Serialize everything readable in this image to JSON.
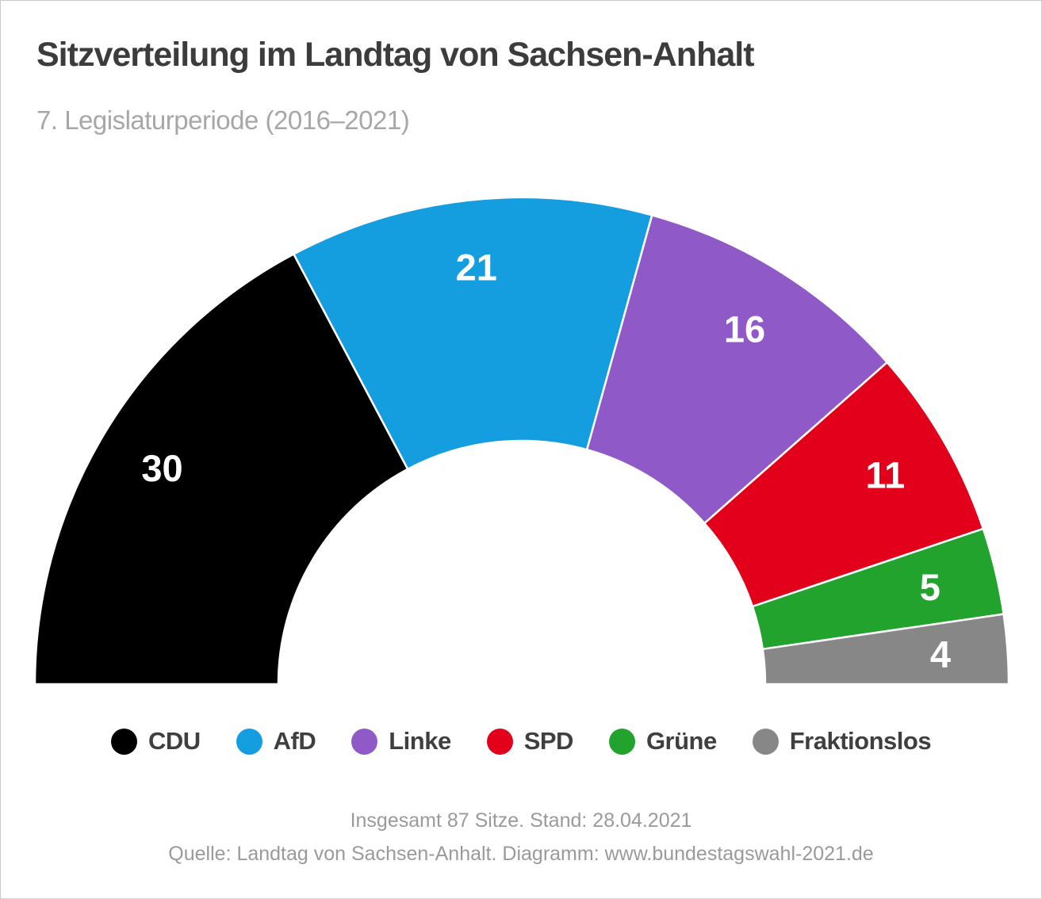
{
  "header": {
    "title": "Sitzverteilung im Landtag von Sachsen-Anhalt",
    "subtitle": "7. Legislaturperiode (2016–2021)"
  },
  "chart_data": {
    "type": "pie",
    "subtype": "hemicycle-half-donut",
    "title": "Sitzverteilung im Landtag von Sachsen-Anhalt",
    "subtitle": "7. Legislaturperiode (2016–2021)",
    "total_seats": 87,
    "categories": [
      "CDU",
      "AfD",
      "Linke",
      "SPD",
      "Grüne",
      "Fraktionslos"
    ],
    "values": [
      30,
      21,
      16,
      11,
      5,
      4
    ],
    "series": [
      {
        "name": "CDU",
        "slug": "cdu",
        "seats": 30,
        "color": "#000000"
      },
      {
        "name": "AfD",
        "slug": "afd",
        "seats": 21,
        "color": "#149ddf"
      },
      {
        "name": "Linke",
        "slug": "linke",
        "seats": 16,
        "color": "#9059c8"
      },
      {
        "name": "SPD",
        "slug": "spd",
        "seats": 11,
        "color": "#e2001a"
      },
      {
        "name": "Grüne",
        "slug": "gruene",
        "seats": 5,
        "color": "#21a32d"
      },
      {
        "name": "Fraktionslos",
        "slug": "fraktionslos",
        "seats": 4,
        "color": "#878787"
      }
    ],
    "legend_position": "bottom",
    "layout": {
      "start_angle_deg": 180,
      "end_angle_deg": 0,
      "inner_radius_ratio": 0.5,
      "label_radius_ratio": 0.862,
      "divider_color": "#ffffff",
      "value_label_color": "#ffffff"
    }
  },
  "footer": {
    "line1": "Insgesamt 87 Sitze. Stand: 28.04.2021",
    "line2": "Quelle: Landtag von Sachsen-Anhalt. Diagramm: www.bundestagswahl-2021.de"
  },
  "page_colors": {
    "background": "#ffffff",
    "border": "#c9c9c9",
    "title_text": "#3c3c3c",
    "subtitle_text": "#a7a7a7",
    "legend_text": "#3f3f3f",
    "footer_text": "#9a9a9a"
  }
}
